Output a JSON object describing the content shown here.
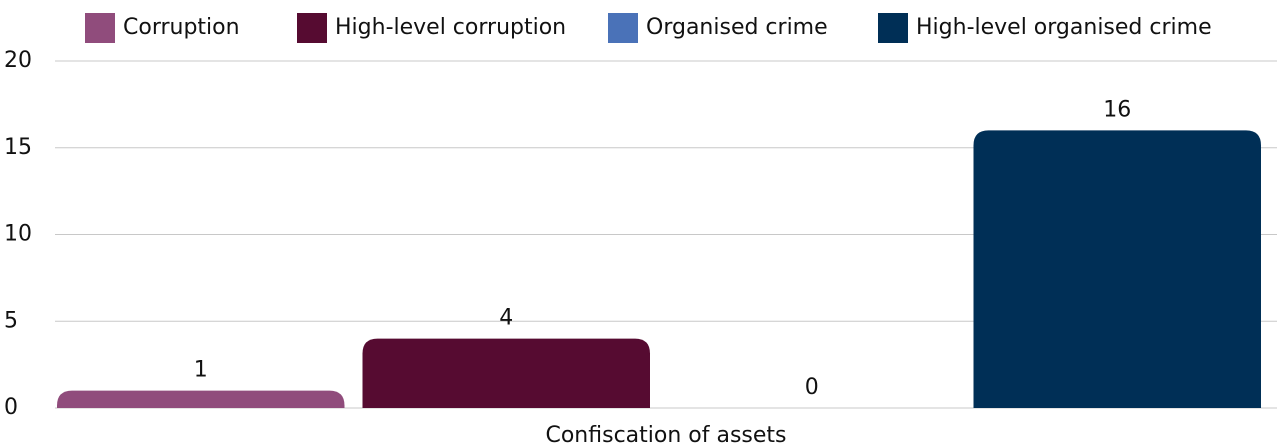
{
  "chart_data": {
    "type": "bar",
    "categories": [
      "Confiscation of assets"
    ],
    "series": [
      {
        "name": "Corruption",
        "color": "#904c7c",
        "values": [
          1
        ]
      },
      {
        "name": "High-level corruption",
        "color": "#560b31",
        "values": [
          4
        ]
      },
      {
        "name": "Organised crime",
        "color": "#4a72b8",
        "values": [
          0
        ]
      },
      {
        "name": "High-level organised crime",
        "color": "#002f56",
        "values": [
          16
        ]
      }
    ],
    "ylim": [
      0,
      20
    ],
    "yticks": [
      0,
      5,
      10,
      15,
      20
    ],
    "grid": true,
    "legend": "top"
  }
}
